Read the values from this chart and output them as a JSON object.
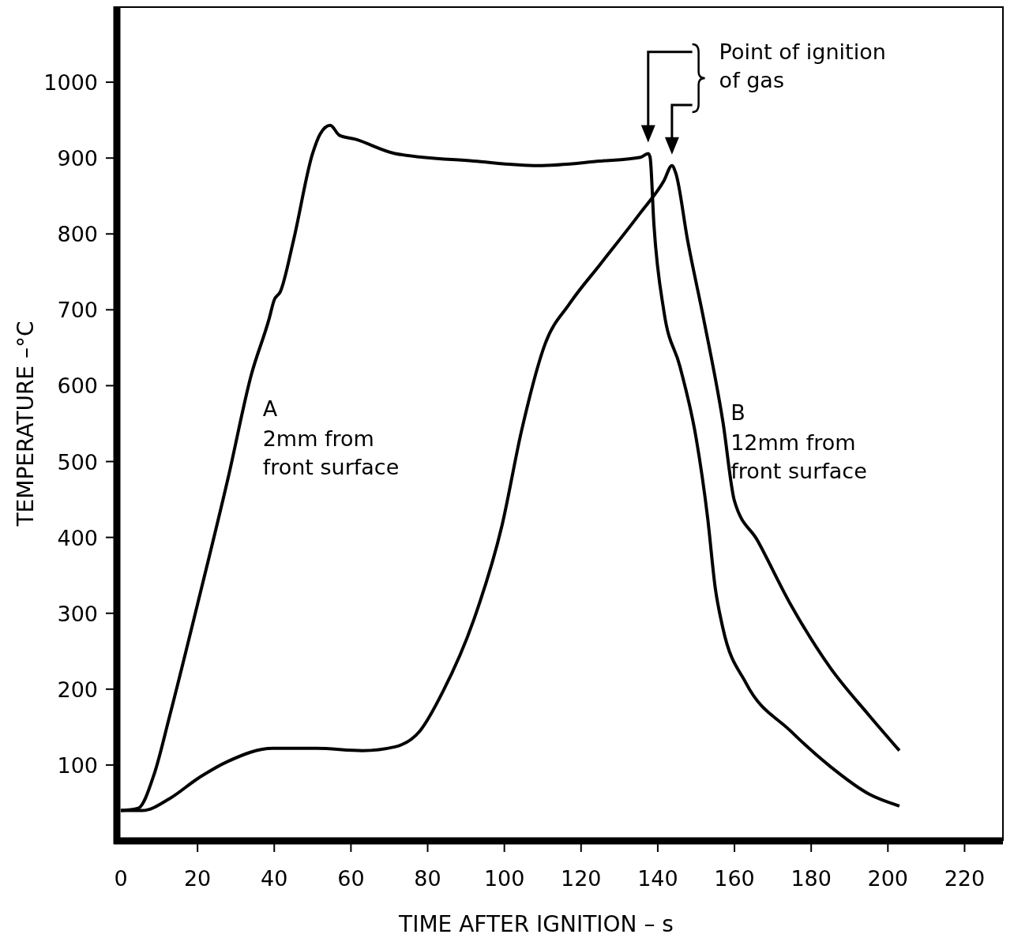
{
  "chart_data": {
    "type": "line",
    "xlabel": "TIME  AFTER  IGNITION – s",
    "ylabel": "TEMPERATURE –°C",
    "xlim": [
      0,
      230
    ],
    "ylim": [
      0,
      1100
    ],
    "xticks": [
      0,
      20,
      40,
      60,
      80,
      100,
      120,
      140,
      160,
      180,
      200,
      220
    ],
    "yticks": [
      100,
      200,
      300,
      400,
      500,
      600,
      700,
      800,
      900,
      1000
    ],
    "grid": false,
    "marker": "none",
    "line_style": "solid",
    "series": [
      {
        "name": "A",
        "color": "#000000",
        "x": [
          0,
          4.5,
          8.7,
          12.8,
          20,
          28,
          34,
          38.6,
          40,
          41.6,
          45,
          50,
          52,
          54.6,
          57,
          61,
          71.5,
          92,
          108.7,
          125,
          135.5,
          137.5,
          138,
          139,
          141.6,
          145.8,
          150,
          153,
          155,
          157,
          163,
          174.6,
          185,
          195,
          203
        ],
        "values": [
          40,
          43,
          88,
          166,
          312,
          479,
          614,
          687,
          713,
          724,
          791,
          906,
          932,
          943,
          930,
          925,
          906,
          896,
          890,
          896,
          901,
          906,
          901,
          812,
          698,
          625,
          531,
          426,
          333,
          280,
          208,
          145,
          98,
          62,
          46
        ]
      },
      {
        "name": "B",
        "color": "#000000",
        "x": [
          0,
          5.6,
          12.8,
          20,
          28,
          39.6,
          51,
          63,
          71.5,
          78,
          84,
          92,
          99.4,
          104.5,
          110.7,
          117,
          125,
          135.5,
          141.6,
          143.7,
          144.7,
          147.8,
          152,
          157,
          160,
          166,
          174.6,
          185,
          195,
          203
        ],
        "values": [
          40,
          40,
          56,
          82,
          105,
          122,
          122,
          119,
          124,
          145,
          197,
          291,
          416,
          541,
          656,
          708,
          760,
          828,
          870,
          890,
          880,
          791,
          687,
          552,
          448,
          396,
          312,
          228,
          166,
          119
        ]
      }
    ],
    "annotations": [
      "2mm  from front  surface",
      "12mm  from front  surface",
      "Point  of  ignition of  gas"
    ]
  }
}
